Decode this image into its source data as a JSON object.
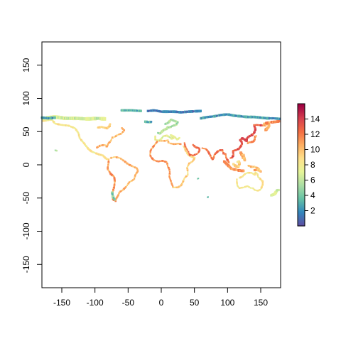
{
  "map": {
    "x_ticks": [
      -150,
      -100,
      -50,
      0,
      50,
      100,
      150
    ],
    "y_ticks": [
      -150,
      -100,
      -50,
      0,
      50,
      100,
      150
    ],
    "xlim": [
      -180,
      180
    ],
    "ylim": [
      -185,
      185
    ],
    "legend": {
      "ticks": [
        2,
        4,
        6,
        8,
        10,
        12,
        14
      ],
      "range": [
        0,
        16
      ],
      "palette": [
        "#5e4fa2",
        "#3288bd",
        "#66c2a5",
        "#abdda4",
        "#e6f598",
        "#fee08b",
        "#fdae61",
        "#f46d43",
        "#d53e4f",
        "#9e0142"
      ]
    }
  }
}
